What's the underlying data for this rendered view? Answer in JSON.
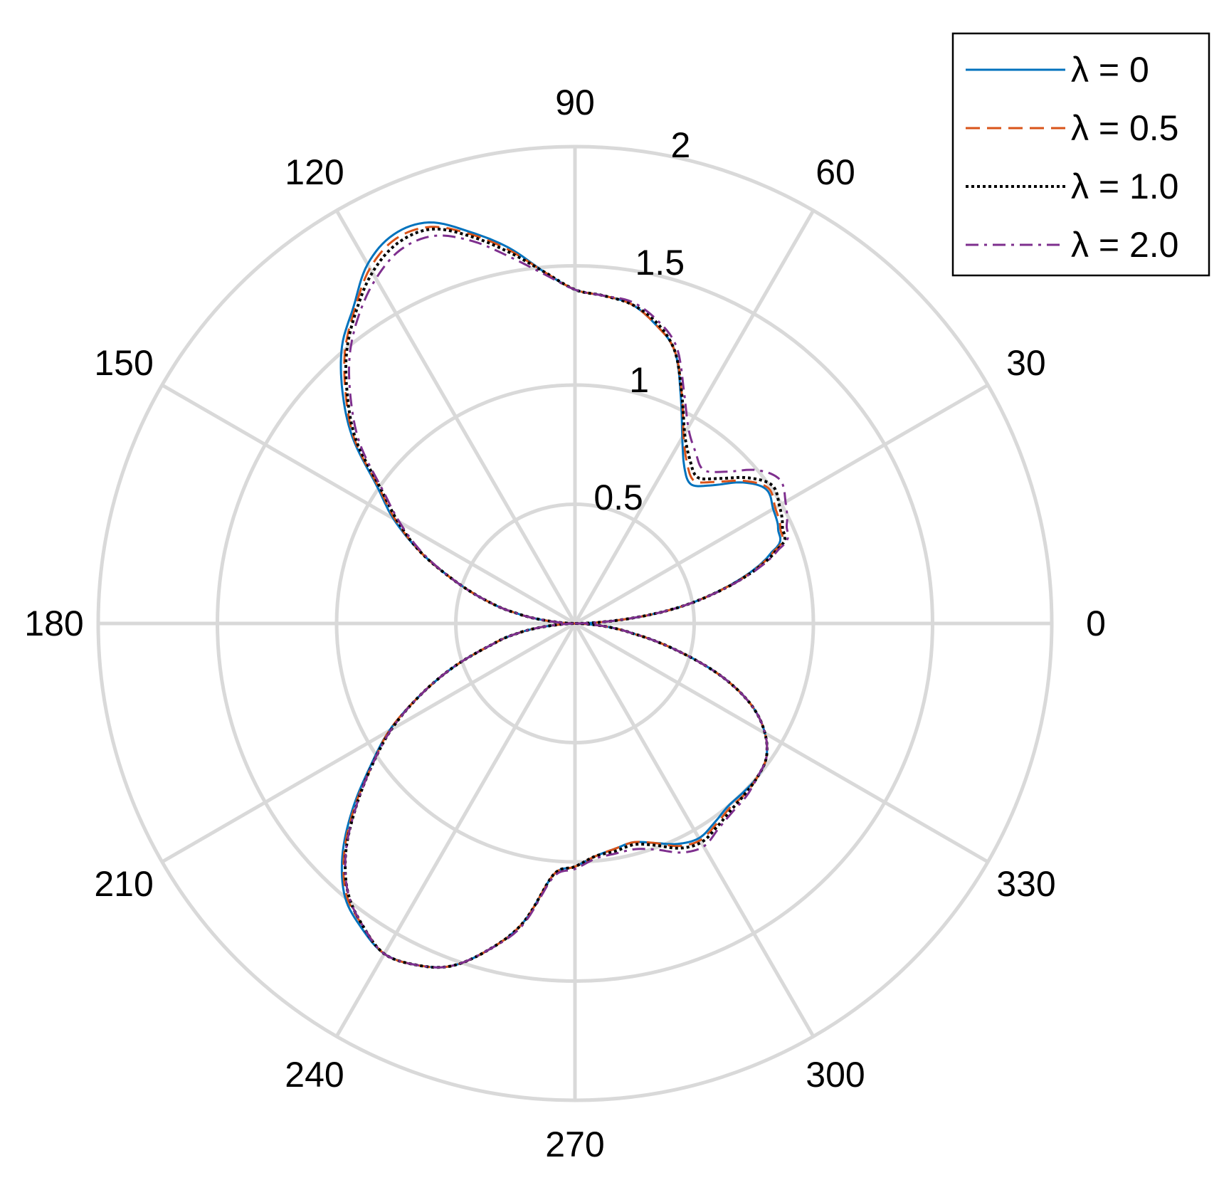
{
  "chart_data": {
    "type": "line",
    "coordinate_system": "polar",
    "angle_unit": "degrees",
    "rlim": [
      0,
      2
    ],
    "radial_ticks": [
      0.5,
      1,
      1.5,
      2
    ],
    "radial_tick_labels": [
      "0.5",
      "1",
      "1.5",
      "2"
    ],
    "angle_ticks": [
      0,
      30,
      60,
      90,
      120,
      150,
      180,
      210,
      240,
      270,
      300,
      330
    ],
    "angle_tick_labels": [
      "0",
      "30",
      "60",
      "90",
      "120",
      "150",
      "180",
      "210",
      "240",
      "270",
      "300",
      "330"
    ],
    "grid": true,
    "legend_position": "top-right",
    "theta": [
      0,
      10,
      20,
      25,
      30,
      35,
      40,
      45,
      50,
      55,
      60,
      65,
      70,
      75,
      80,
      85,
      90,
      95,
      100,
      105,
      110,
      115,
      120,
      125,
      130,
      135,
      140,
      145,
      150,
      155,
      160,
      165,
      170,
      180,
      190,
      195,
      200,
      205,
      210,
      215,
      220,
      225,
      230,
      235,
      240,
      245,
      250,
      255,
      260,
      265,
      270,
      275,
      280,
      285,
      290,
      295,
      300,
      305,
      310,
      315,
      320,
      325,
      330,
      335,
      340,
      345,
      350,
      360
    ],
    "series": [
      {
        "name": "λ = 0",
        "color": "#0072bd",
        "dash": "solid",
        "r": [
          0.0,
          0.5,
          0.88,
          0.94,
          0.96,
          0.98,
          0.92,
          0.82,
          0.76,
          0.8,
          0.9,
          1.05,
          1.22,
          1.3,
          1.36,
          1.38,
          1.4,
          1.48,
          1.6,
          1.7,
          1.79,
          1.8,
          1.74,
          1.62,
          1.52,
          1.38,
          1.22,
          1.02,
          0.88,
          0.72,
          0.55,
          0.4,
          0.25,
          0.0,
          0.25,
          0.38,
          0.55,
          0.72,
          0.9,
          1.05,
          1.22,
          1.38,
          1.5,
          1.56,
          1.6,
          1.58,
          1.53,
          1.42,
          1.28,
          1.06,
          1.02,
          0.98,
          0.96,
          0.95,
          0.98,
          1.02,
          1.04,
          1.02,
          1.0,
          1.0,
          1.0,
          0.98,
          0.92,
          0.82,
          0.66,
          0.45,
          0.25,
          0.0
        ]
      },
      {
        "name": "λ = 0.5",
        "color": "#d95319",
        "dash": "dash",
        "r": [
          0.0,
          0.5,
          0.89,
          0.95,
          0.97,
          0.99,
          0.93,
          0.84,
          0.78,
          0.82,
          0.91,
          1.06,
          1.22,
          1.3,
          1.36,
          1.38,
          1.4,
          1.48,
          1.59,
          1.69,
          1.77,
          1.78,
          1.72,
          1.61,
          1.5,
          1.36,
          1.21,
          1.01,
          0.87,
          0.72,
          0.55,
          0.4,
          0.25,
          0.0,
          0.25,
          0.38,
          0.55,
          0.72,
          0.9,
          1.04,
          1.21,
          1.37,
          1.49,
          1.55,
          1.6,
          1.58,
          1.53,
          1.42,
          1.28,
          1.06,
          1.02,
          0.98,
          0.96,
          0.95,
          0.98,
          1.03,
          1.05,
          1.03,
          1.01,
          1.01,
          1.0,
          0.98,
          0.92,
          0.82,
          0.66,
          0.45,
          0.25,
          0.0
        ]
      },
      {
        "name": "λ = 1.0",
        "color": "#000000",
        "dash": "dot",
        "r": [
          0.0,
          0.5,
          0.9,
          0.96,
          0.99,
          1.01,
          0.95,
          0.86,
          0.8,
          0.84,
          0.92,
          1.06,
          1.22,
          1.31,
          1.36,
          1.38,
          1.4,
          1.48,
          1.58,
          1.68,
          1.76,
          1.76,
          1.7,
          1.6,
          1.49,
          1.35,
          1.2,
          1.0,
          0.86,
          0.72,
          0.55,
          0.4,
          0.25,
          0.0,
          0.25,
          0.38,
          0.55,
          0.72,
          0.89,
          1.04,
          1.2,
          1.36,
          1.48,
          1.55,
          1.6,
          1.58,
          1.53,
          1.42,
          1.28,
          1.06,
          1.02,
          0.98,
          0.97,
          0.96,
          0.99,
          1.04,
          1.06,
          1.04,
          1.02,
          1.01,
          1.0,
          0.98,
          0.92,
          0.82,
          0.66,
          0.45,
          0.25,
          0.0
        ]
      },
      {
        "name": "λ = 2.0",
        "color": "#7e2f8e",
        "dash": "dashdot",
        "r": [
          0.0,
          0.5,
          0.91,
          0.98,
          1.02,
          1.05,
          1.0,
          0.9,
          0.84,
          0.88,
          0.95,
          1.08,
          1.24,
          1.32,
          1.37,
          1.38,
          1.4,
          1.47,
          1.56,
          1.66,
          1.73,
          1.73,
          1.67,
          1.58,
          1.47,
          1.33,
          1.18,
          0.99,
          0.85,
          0.71,
          0.55,
          0.4,
          0.25,
          0.0,
          0.25,
          0.38,
          0.55,
          0.72,
          0.89,
          1.04,
          1.2,
          1.36,
          1.48,
          1.55,
          1.6,
          1.58,
          1.53,
          1.42,
          1.29,
          1.07,
          1.03,
          0.99,
          0.98,
          0.98,
          1.01,
          1.06,
          1.08,
          1.05,
          1.03,
          1.02,
          1.0,
          0.98,
          0.92,
          0.82,
          0.66,
          0.45,
          0.25,
          0.0
        ]
      }
    ]
  }
}
